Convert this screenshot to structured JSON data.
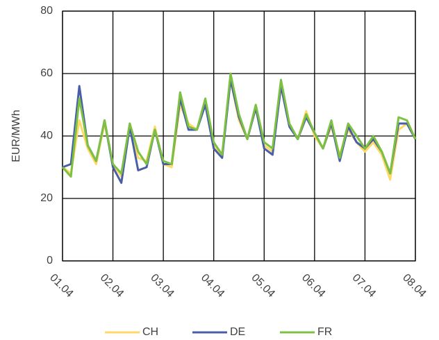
{
  "chart_data": {
    "type": "line",
    "y_label": "EUR/MWh",
    "categories": [
      "01.04",
      null,
      null,
      null,
      null,
      null,
      "02.04",
      null,
      null,
      null,
      null,
      null,
      "03.04",
      null,
      null,
      null,
      null,
      null,
      "04.04",
      null,
      null,
      null,
      null,
      null,
      "05.04",
      null,
      null,
      null,
      null,
      null,
      "06.04",
      null,
      null,
      null,
      null,
      null,
      "07.04",
      null,
      null,
      null,
      null,
      null,
      "08.04"
    ],
    "series": [
      {
        "name": "CH",
        "color": "#ffd966",
        "values": [
          30,
          28,
          45,
          36,
          31,
          44,
          31,
          27,
          44,
          33,
          32,
          43,
          31,
          30,
          50,
          44,
          42,
          51,
          37,
          34,
          58,
          45,
          39,
          49,
          37,
          35,
          56,
          44,
          39,
          48,
          40,
          36,
          43,
          34,
          42,
          38,
          35,
          38,
          34,
          26,
          42,
          44,
          39
        ]
      },
      {
        "name": "DE",
        "color": "#4a5ea8",
        "values": [
          30,
          31,
          56,
          37,
          32,
          45,
          30,
          25,
          43,
          29,
          30,
          42,
          31,
          31,
          52,
          42,
          42,
          50,
          36,
          33,
          58,
          46,
          39,
          49,
          36,
          34,
          56,
          43,
          39,
          46,
          41,
          36,
          44,
          32,
          43,
          38,
          36,
          39,
          35,
          28,
          44,
          44,
          39
        ]
      },
      {
        "name": "FR",
        "color": "#7cc142",
        "values": [
          30,
          27,
          52,
          37,
          32,
          45,
          31,
          28,
          44,
          35,
          31,
          42,
          32,
          31,
          54,
          43,
          42,
          52,
          38,
          34,
          60,
          47,
          39,
          50,
          38,
          36,
          58,
          44,
          39,
          47,
          41,
          36,
          45,
          33,
          44,
          40,
          36,
          40,
          35,
          28,
          46,
          45,
          39
        ]
      }
    ],
    "ylim": [
      0,
      80
    ],
    "yticks": [
      0,
      20,
      40,
      60,
      80
    ],
    "grid": true,
    "legend": "bottom"
  }
}
